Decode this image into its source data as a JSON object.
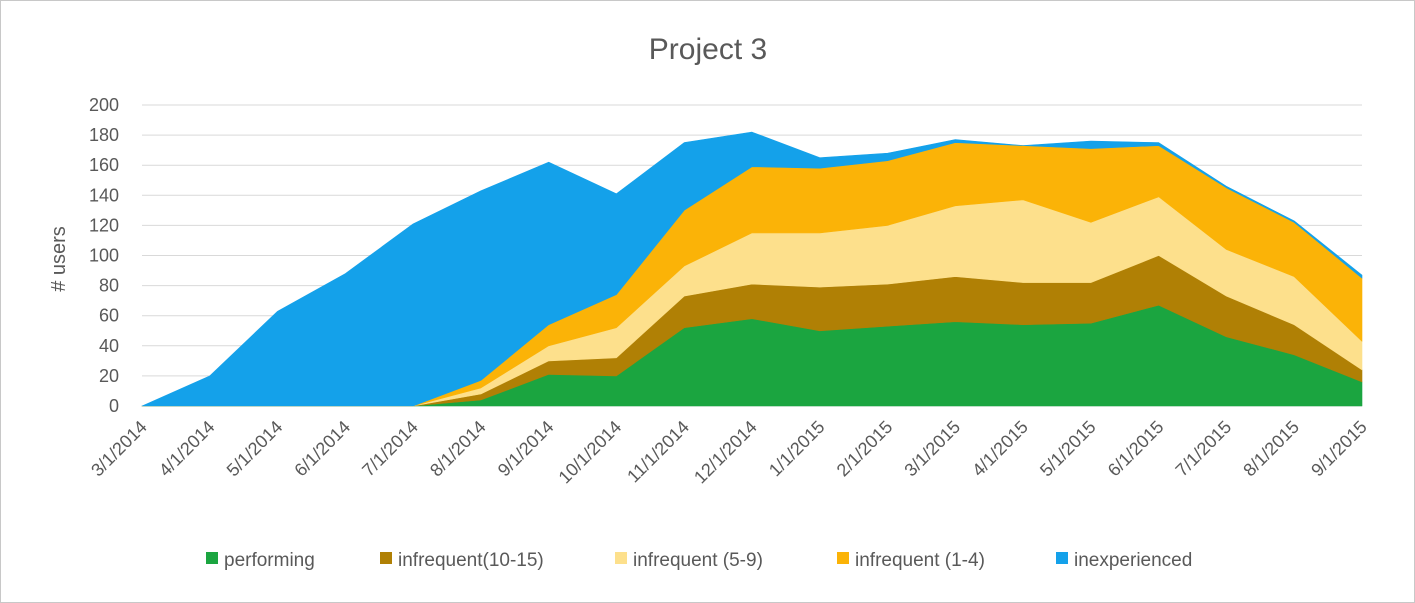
{
  "chart_data": {
    "type": "area",
    "stacked": true,
    "title": "Project 3",
    "xlabel": "",
    "ylabel": "# users",
    "ylim": [
      0,
      200
    ],
    "yticks": [
      0,
      20,
      40,
      60,
      80,
      100,
      120,
      140,
      160,
      180,
      200
    ],
    "grid": "horizontal",
    "legend": "bottom",
    "categories": [
      "3/1/2014",
      "4/1/2014",
      "5/1/2014",
      "6/1/2014",
      "7/1/2014",
      "8/1/2014",
      "9/1/2014",
      "10/1/2014",
      "11/1/2014",
      "12/1/2014",
      "1/1/2015",
      "2/1/2015",
      "3/1/2015",
      "4/1/2015",
      "5/1/2015",
      "6/1/2015",
      "7/1/2015",
      "8/1/2015",
      "9/1/2015"
    ],
    "series": [
      {
        "name": "performing",
        "color": "#1ba540",
        "values": [
          0,
          0,
          0,
          0,
          0,
          4,
          21,
          20,
          52,
          58,
          50,
          53,
          56,
          54,
          55,
          67,
          46,
          34,
          16
        ]
      },
      {
        "name": "infrequent(10-15)",
        "color": "#b08005",
        "values": [
          0,
          0,
          0,
          0,
          0,
          4,
          9,
          12,
          21,
          23,
          29,
          28,
          30,
          28,
          27,
          33,
          27,
          20,
          8
        ]
      },
      {
        "name": "infrequent (5-9)",
        "color": "#fde08c",
        "values": [
          0,
          0,
          0,
          0,
          0,
          4,
          10,
          20,
          20,
          34,
          36,
          39,
          47,
          55,
          40,
          39,
          31,
          32,
          19
        ]
      },
      {
        "name": "infrequent (1-4)",
        "color": "#fbb307",
        "values": [
          0,
          0,
          0,
          0,
          0,
          5,
          14,
          22,
          37,
          44,
          43,
          43,
          42,
          36,
          49,
          34,
          41,
          36,
          42
        ]
      },
      {
        "name": "inexperienced",
        "color": "#14a1ea",
        "values": [
          0,
          20,
          63,
          88,
          121,
          126,
          108,
          67,
          45,
          23,
          7,
          5,
          2,
          0,
          5,
          2,
          1,
          1,
          2
        ]
      }
    ]
  }
}
